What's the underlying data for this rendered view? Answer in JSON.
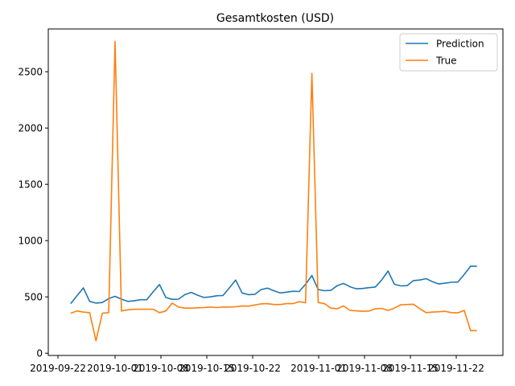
{
  "chart_data": {
    "type": "line",
    "title": "Gesamtkosten (USD)",
    "xlabel": "",
    "ylabel": "",
    "x_range": [
      "2019-09-22",
      "2019-11-30"
    ],
    "ylim": [
      -20,
      2880
    ],
    "y_ticks": [
      0,
      500,
      1000,
      1500,
      2000,
      2500
    ],
    "x_ticks": [
      "2019-09-22",
      "2019-10-01",
      "2019-10-08",
      "2019-10-15",
      "2019-10-22",
      "2019-11-01",
      "2019-11-08",
      "2019-11-15",
      "2019-11-22"
    ],
    "grid": false,
    "legend_position": "top-right",
    "x": [
      "2019-09-24",
      "2019-09-25",
      "2019-09-26",
      "2019-09-27",
      "2019-09-28",
      "2019-09-29",
      "2019-09-30",
      "2019-10-01",
      "2019-10-02",
      "2019-10-03",
      "2019-10-04",
      "2019-10-05",
      "2019-10-06",
      "2019-10-07",
      "2019-10-08",
      "2019-10-09",
      "2019-10-10",
      "2019-10-11",
      "2019-10-12",
      "2019-10-13",
      "2019-10-14",
      "2019-10-15",
      "2019-10-16",
      "2019-10-17",
      "2019-10-18",
      "2019-10-19",
      "2019-10-20",
      "2019-10-21",
      "2019-10-22",
      "2019-10-23",
      "2019-10-24",
      "2019-10-25",
      "2019-10-26",
      "2019-10-27",
      "2019-10-28",
      "2019-10-29",
      "2019-10-30",
      "2019-10-31",
      "2019-11-01",
      "2019-11-02",
      "2019-11-03",
      "2019-11-04",
      "2019-11-05",
      "2019-11-06",
      "2019-11-07",
      "2019-11-08",
      "2019-11-09",
      "2019-11-10",
      "2019-11-11",
      "2019-11-12",
      "2019-11-13",
      "2019-11-14",
      "2019-11-15",
      "2019-11-16",
      "2019-11-17",
      "2019-11-18",
      "2019-11-19",
      "2019-11-20",
      "2019-11-21",
      "2019-11-22",
      "2019-11-23",
      "2019-11-24",
      "2019-11-25",
      "2019-11-26",
      "2019-11-27"
    ],
    "series": [
      {
        "name": "Prediction",
        "color": "#1f77b4",
        "values": [
          440,
          510,
          580,
          460,
          445,
          450,
          485,
          505,
          480,
          460,
          465,
          475,
          475,
          545,
          610,
          495,
          478,
          480,
          520,
          540,
          515,
          495,
          500,
          510,
          512,
          580,
          650,
          535,
          520,
          522,
          565,
          578,
          555,
          535,
          542,
          550,
          548,
          612,
          690,
          565,
          555,
          558,
          600,
          620,
          590,
          572,
          575,
          582,
          588,
          650,
          730,
          612,
          598,
          600,
          645,
          650,
          662,
          635,
          615,
          622,
          630,
          632,
          700,
          772,
          772
        ]
      },
      {
        "name": "True",
        "color": "#ff7f0e",
        "values": [
          355,
          375,
          365,
          360,
          110,
          355,
          360,
          2770,
          375,
          385,
          390,
          390,
          390,
          390,
          360,
          375,
          445,
          410,
          400,
          400,
          403,
          405,
          410,
          405,
          410,
          410,
          412,
          420,
          418,
          428,
          438,
          440,
          432,
          432,
          440,
          440,
          458,
          448,
          2485,
          450,
          440,
          400,
          395,
          420,
          380,
          376,
          372,
          375,
          395,
          398,
          380,
          400,
          430,
          432,
          435,
          395,
          360,
          365,
          368,
          372,
          360,
          358,
          380,
          200,
          200
        ]
      }
    ]
  }
}
